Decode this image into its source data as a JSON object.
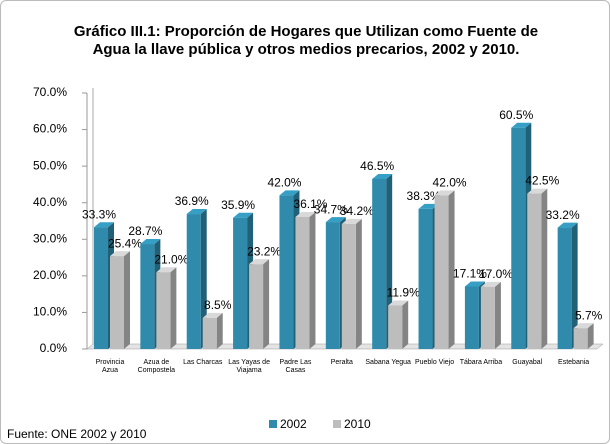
{
  "chart_data": {
    "type": "bar",
    "title": "Gráfico III.1: Proporción de Hogares que Utilizan como Fuente de Agua la llave pública y otros medios precarios, 2002 y 2010.",
    "categories": [
      "Provincia Azua",
      "Azua de Compostela",
      "Las Charcas",
      "Las Yayas de Viajama",
      "Padre Las Casas",
      "Peralta",
      "Sabana Yegua",
      "Pueblo Viejo",
      "Tábara Arriba",
      "Guayabal",
      "Estebania"
    ],
    "series": [
      {
        "name": "2002",
        "color": "#2f8aab",
        "values": [
          33.3,
          28.7,
          36.9,
          35.9,
          42.0,
          34.7,
          46.5,
          38.3,
          17.1,
          60.5,
          33.2
        ],
        "value_labels": [
          "33.3%",
          "28.7%",
          "36.9%",
          "35.9%",
          "42.0%",
          "34.7%",
          "46.5%",
          "38.3%",
          "17.1%",
          "60.5%",
          "33.2%"
        ]
      },
      {
        "name": "2010",
        "color": "#bdbdbd",
        "values": [
          25.4,
          21.0,
          8.5,
          23.2,
          36.1,
          34.2,
          11.9,
          42.0,
          17.0,
          42.5,
          5.7
        ],
        "value_labels": [
          "25.4%",
          "21.0%",
          "8.5%",
          "23.2%",
          "36.1%",
          "34.2%",
          "11.9%",
          "42.0%",
          "17.0%",
          "42.5%",
          "5.7%"
        ]
      }
    ],
    "ylim": [
      0,
      70
    ],
    "yticks": [
      {
        "value": 0,
        "label": "0.0%"
      },
      {
        "value": 10,
        "label": "10.0%"
      },
      {
        "value": 20,
        "label": "20.0%"
      },
      {
        "value": 30,
        "label": "30.0%"
      },
      {
        "value": 40,
        "label": "40.0%"
      },
      {
        "value": 50,
        "label": "50.0%"
      },
      {
        "value": 60,
        "label": "60.0%"
      },
      {
        "value": 70,
        "label": "70.0%"
      }
    ],
    "source": "Fuente: ONE 2002 y 2010"
  }
}
